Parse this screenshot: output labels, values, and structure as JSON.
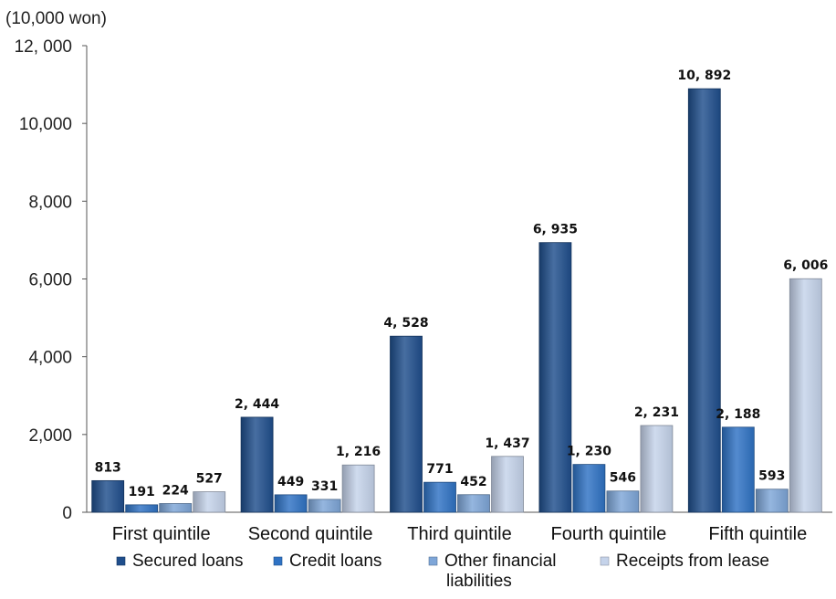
{
  "chart_data": {
    "type": "bar",
    "unit_label": "(10,000 won)",
    "title": "",
    "xlabel": "",
    "ylabel": "",
    "ylim": [
      0,
      12000
    ],
    "yticks": [
      0,
      2000,
      4000,
      6000,
      8000,
      10000,
      12000
    ],
    "ytick_labels": [
      "0",
      "2,000",
      "4,000",
      "6,000",
      "8,000",
      "10,000",
      "12, 000"
    ],
    "categories": [
      "First quintile",
      "Second quintile",
      "Third quintile",
      "Fourth quintile",
      "Fifth quintile"
    ],
    "series": [
      {
        "name": "Secured loans",
        "values": [
          813,
          2444,
          4528,
          6935,
          10892
        ],
        "labels": [
          "813",
          "2, 444",
          "4, 528",
          "6, 935",
          "10, 892"
        ],
        "color": "#1f4e8c"
      },
      {
        "name": "Credit loans",
        "values": [
          191,
          449,
          771,
          1230,
          2188
        ],
        "labels": [
          "191",
          "449",
          "771",
          "1, 230",
          "2, 188"
        ],
        "color": "#2f72c4"
      },
      {
        "name": "Other financial liabilities",
        "values": [
          224,
          331,
          452,
          546,
          593
        ],
        "labels": [
          "224",
          "331",
          "452",
          "546",
          "593"
        ],
        "color": "#7ea6d8"
      },
      {
        "name": "Receipts from lease",
        "values": [
          527,
          1216,
          1437,
          2231,
          6006
        ],
        "labels": [
          "527",
          "1, 216",
          "1, 437",
          "2, 231",
          "6, 006"
        ],
        "color": "#c5d3ea"
      }
    ],
    "grid": false,
    "legend": "bottom"
  }
}
